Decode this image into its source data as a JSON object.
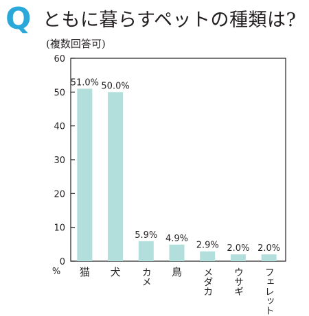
{
  "header": {
    "q_mark": "Q",
    "title": "ともに暮らすペットの種類は?",
    "subtitle": "(複数回答可)"
  },
  "chart_data": {
    "type": "bar",
    "categories": [
      "猫",
      "犬",
      "カメ",
      "鳥",
      "メダカ",
      "ウサギ",
      "フェレット"
    ],
    "values": [
      51.0,
      50.0,
      5.9,
      4.9,
      2.9,
      2.0,
      2.0
    ],
    "value_labels": [
      "51.0%",
      "50.0%",
      "5.9%",
      "4.9%",
      "2.9%",
      "2.0%",
      "2.0%"
    ],
    "yticks": [
      0,
      10,
      20,
      30,
      40,
      50,
      60
    ],
    "ylim": [
      0,
      60
    ],
    "y_unit": "%",
    "bar_color": "#b2dfdb",
    "grid": false
  }
}
